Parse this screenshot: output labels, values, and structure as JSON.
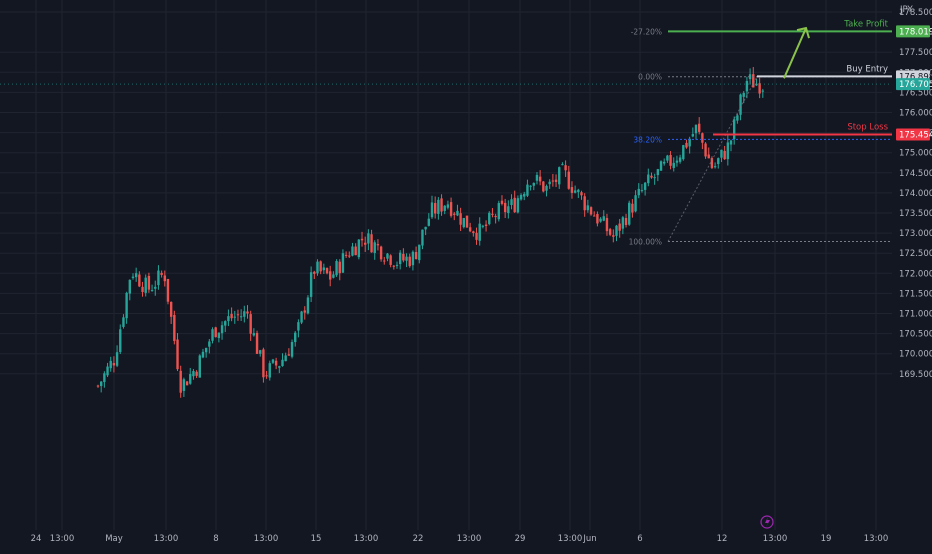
{
  "colors": {
    "background": "#131722",
    "grid": "#1f2430",
    "axis_text": "#b2b5be",
    "bull": "#26a69a",
    "bear": "#ef5350",
    "take_profit": "#4caf50",
    "buy_entry": "#d1d4dc",
    "stop_loss": "#f23645",
    "fib": "#787b86",
    "fib_mid": "#2962ff",
    "current_price": "#26a69a"
  },
  "chart_data": {
    "type": "candlestick",
    "currency": "JPY",
    "y_ticks": [
      "169.500",
      "170.000",
      "170.500",
      "171.000",
      "171.500",
      "172.000",
      "172.500",
      "173.000",
      "173.500",
      "174.000",
      "174.500",
      "175.000",
      "175.500",
      "176.000",
      "176.500",
      "177.000",
      "177.500",
      "178.500"
    ],
    "x_ticks": [
      "24",
      "13:00",
      "May",
      "13:00",
      "8",
      "13:00",
      "15",
      "13:00",
      "22",
      "13:00",
      "29",
      "13:00",
      "Jun",
      "6",
      "12",
      "13:00",
      "19",
      "13:00"
    ],
    "levels": {
      "take_profit": {
        "label": "Take Profit",
        "value": "178.019"
      },
      "buy_entry": {
        "label": "Buy Entry",
        "value": "176.898"
      },
      "stop_loss": {
        "label": "Stop Loss",
        "value": "175.454"
      },
      "current_price": {
        "value": "176.705"
      }
    },
    "fib_levels": [
      {
        "label": "-27.20%",
        "value": 178.02
      },
      {
        "label": "0.00%",
        "value": 176.89
      },
      {
        "label": "38.20%",
        "value": 175.33
      },
      {
        "label": "100.00%",
        "value": 172.79
      }
    ],
    "price_path": [
      169.2,
      169.9,
      172.1,
      171.6,
      172.0,
      169.2,
      169.7,
      170.6,
      170.9,
      171.0,
      169.5,
      169.8,
      170.5,
      172.1,
      171.9,
      172.5,
      172.9,
      172.6,
      172.3,
      172.4,
      173.5,
      173.8,
      173.3,
      173.0,
      173.5,
      173.7,
      174.4,
      174.1,
      174.5,
      173.9,
      173.4,
      172.9,
      173.6,
      174.2,
      174.6,
      175.0,
      175.6,
      174.6,
      175.2,
      176.8,
      176.7
    ],
    "projection": {
      "from": 176.9,
      "to": 178.0
    }
  }
}
